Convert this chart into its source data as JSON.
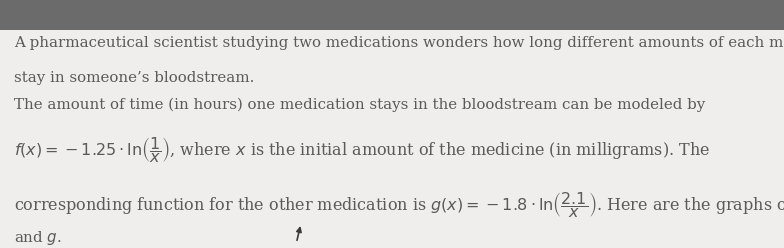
{
  "background_color": "#f0eeec",
  "top_bar_color": "#6b6b6b",
  "text_color": "#5a5a5a",
  "line1": "A pharmaceutical scientist studying two medications wonders how long different amounts of each medicine",
  "line2": "stay in someone’s bloodstream.",
  "line3": "The amount of time (in hours) one medication stays in the bloodstream can be modeled by",
  "fx_formula": "$f(x) = -1.25 \\cdot \\ln\\!\\left(\\dfrac{1}{x}\\right)$, where $x$ is the initial amount of the medicine (in milligrams). The",
  "gx_formula": "corresponding function for the other medication is $g(x) = -1.8 \\cdot \\ln\\!\\left(\\dfrac{2.1}{x}\\right)$. Here are the graphs of $f$",
  "last_line": "and $g$.",
  "font_size": 10.8,
  "formula_font_size": 11.5,
  "top_bar_height": 0.12
}
